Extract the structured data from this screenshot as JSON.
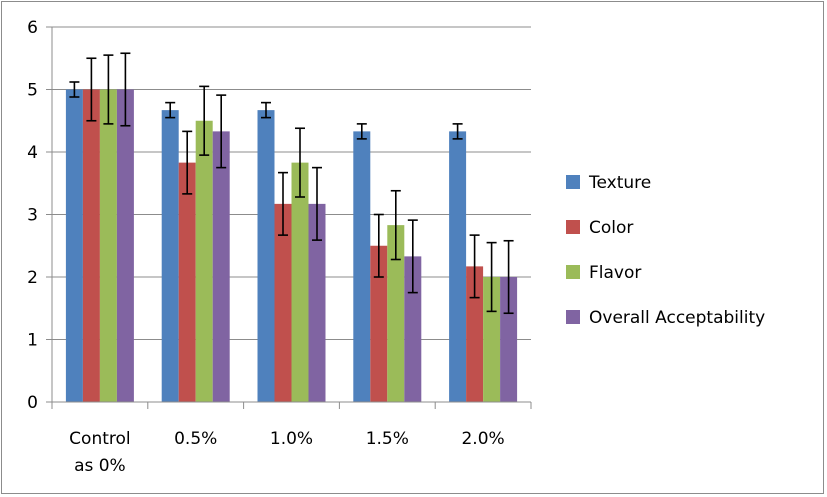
{
  "chart_data": {
    "type": "bar",
    "title": "",
    "xlabel": "",
    "ylabel": "",
    "ylim": [
      0,
      6
    ],
    "yticks": [
      0,
      1,
      2,
      3,
      4,
      5,
      6
    ],
    "grid": true,
    "legend_position": "right",
    "categories": [
      [
        "Control",
        "as 0%"
      ],
      [
        "0.5%"
      ],
      [
        "1.0%"
      ],
      [
        "1.5%"
      ],
      [
        "2.0%"
      ]
    ],
    "series": [
      {
        "name": "Texture",
        "color": "#4f81bd",
        "values": [
          5.0,
          4.67,
          4.67,
          4.33,
          4.33
        ],
        "errors": [
          0.12,
          0.12,
          0.12,
          0.12,
          0.12
        ]
      },
      {
        "name": "Color",
        "color": "#c0504d",
        "values": [
          5.0,
          3.83,
          3.17,
          2.5,
          2.17
        ],
        "errors": [
          0.5,
          0.5,
          0.5,
          0.5,
          0.5
        ]
      },
      {
        "name": "Flavor",
        "color": "#9bbb59",
        "values": [
          5.0,
          4.5,
          3.83,
          2.83,
          2.0
        ],
        "errors": [
          0.55,
          0.55,
          0.55,
          0.55,
          0.55
        ]
      },
      {
        "name": "Overall Acceptability",
        "color": "#8064a2",
        "values": [
          5.0,
          4.33,
          3.17,
          2.33,
          2.0
        ],
        "errors": [
          0.58,
          0.58,
          0.58,
          0.58,
          0.58
        ]
      }
    ]
  }
}
